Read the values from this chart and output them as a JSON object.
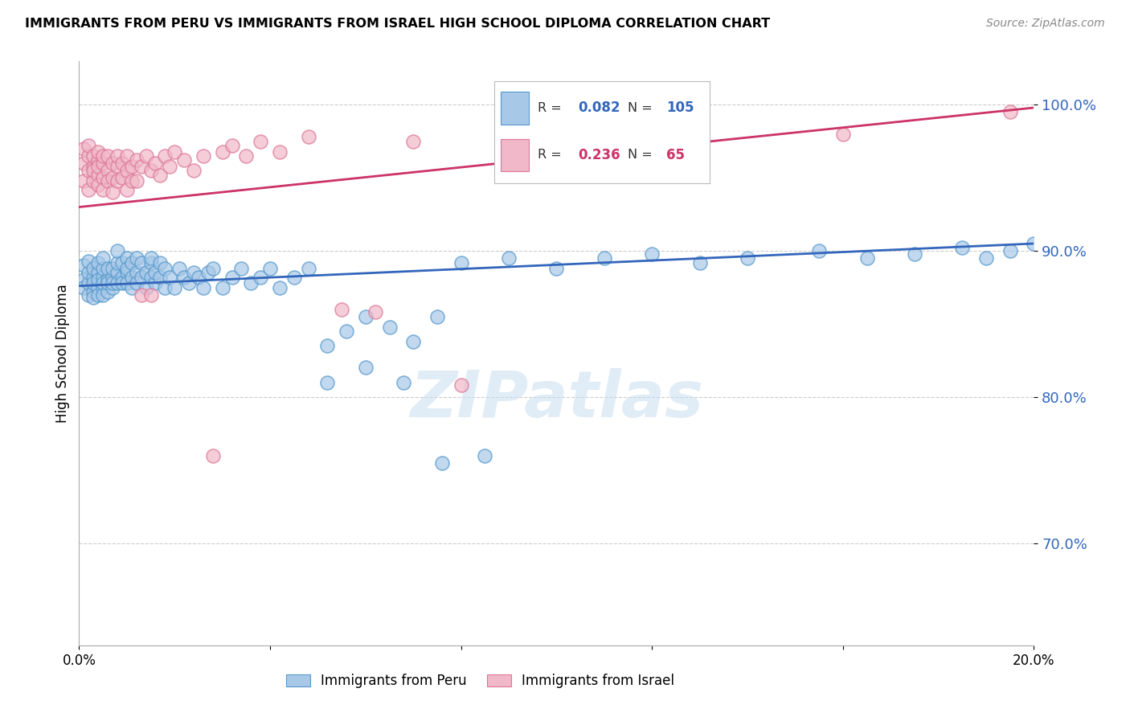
{
  "title": "IMMIGRANTS FROM PERU VS IMMIGRANTS FROM ISRAEL HIGH SCHOOL DIPLOMA CORRELATION CHART",
  "source": "Source: ZipAtlas.com",
  "ylabel": "High School Diploma",
  "ytick_labels": [
    "100.0%",
    "90.0%",
    "80.0%",
    "70.0%"
  ],
  "ytick_values": [
    1.0,
    0.9,
    0.8,
    0.7
  ],
  "xlim": [
    0.0,
    0.2
  ],
  "ylim": [
    0.63,
    1.03
  ],
  "watermark": "ZIPatlas",
  "legend_peru_R": "0.082",
  "legend_peru_N": "105",
  "legend_israel_R": "0.236",
  "legend_israel_N": "65",
  "peru_color": "#a8c8e8",
  "peru_edge_color": "#5599cc",
  "peru_line_color": "#3366bb",
  "israel_color": "#f0b8c8",
  "israel_edge_color": "#dd7799",
  "israel_line_color": "#cc3366",
  "peru_x": [
    0.001,
    0.001,
    0.001,
    0.002,
    0.002,
    0.002,
    0.002,
    0.003,
    0.003,
    0.003,
    0.003,
    0.003,
    0.004,
    0.004,
    0.004,
    0.004,
    0.004,
    0.005,
    0.005,
    0.005,
    0.005,
    0.005,
    0.005,
    0.006,
    0.006,
    0.006,
    0.006,
    0.007,
    0.007,
    0.007,
    0.007,
    0.008,
    0.008,
    0.008,
    0.008,
    0.009,
    0.009,
    0.009,
    0.01,
    0.01,
    0.01,
    0.01,
    0.011,
    0.011,
    0.011,
    0.012,
    0.012,
    0.012,
    0.013,
    0.013,
    0.014,
    0.014,
    0.015,
    0.015,
    0.015,
    0.016,
    0.016,
    0.017,
    0.017,
    0.018,
    0.018,
    0.019,
    0.02,
    0.021,
    0.022,
    0.023,
    0.024,
    0.025,
    0.026,
    0.027,
    0.028,
    0.03,
    0.032,
    0.034,
    0.036,
    0.038,
    0.04,
    0.042,
    0.045,
    0.048,
    0.052,
    0.056,
    0.06,
    0.065,
    0.07,
    0.075,
    0.08,
    0.09,
    0.1,
    0.11,
    0.12,
    0.13,
    0.14,
    0.155,
    0.165,
    0.175,
    0.185,
    0.19,
    0.195,
    0.2,
    0.052,
    0.06,
    0.068,
    0.076,
    0.085
  ],
  "peru_y": [
    0.88,
    0.89,
    0.875,
    0.878,
    0.885,
    0.87,
    0.893,
    0.872,
    0.882,
    0.868,
    0.888,
    0.878,
    0.875,
    0.885,
    0.87,
    0.88,
    0.892,
    0.875,
    0.882,
    0.87,
    0.878,
    0.888,
    0.895,
    0.88,
    0.872,
    0.888,
    0.878,
    0.882,
    0.875,
    0.888,
    0.878,
    0.885,
    0.892,
    0.878,
    0.9,
    0.882,
    0.878,
    0.892,
    0.885,
    0.895,
    0.878,
    0.888,
    0.882,
    0.892,
    0.875,
    0.895,
    0.885,
    0.878,
    0.892,
    0.882,
    0.875,
    0.885,
    0.892,
    0.882,
    0.895,
    0.878,
    0.885,
    0.882,
    0.892,
    0.875,
    0.888,
    0.882,
    0.875,
    0.888,
    0.882,
    0.878,
    0.885,
    0.882,
    0.875,
    0.885,
    0.888,
    0.875,
    0.882,
    0.888,
    0.878,
    0.882,
    0.888,
    0.875,
    0.882,
    0.888,
    0.835,
    0.845,
    0.855,
    0.848,
    0.838,
    0.855,
    0.892,
    0.895,
    0.888,
    0.895,
    0.898,
    0.892,
    0.895,
    0.9,
    0.895,
    0.898,
    0.902,
    0.895,
    0.9,
    0.905,
    0.81,
    0.82,
    0.81,
    0.755,
    0.76
  ],
  "israel_x": [
    0.001,
    0.001,
    0.001,
    0.002,
    0.002,
    0.002,
    0.002,
    0.003,
    0.003,
    0.003,
    0.003,
    0.004,
    0.004,
    0.004,
    0.004,
    0.004,
    0.005,
    0.005,
    0.005,
    0.005,
    0.006,
    0.006,
    0.006,
    0.007,
    0.007,
    0.007,
    0.008,
    0.008,
    0.008,
    0.009,
    0.009,
    0.01,
    0.01,
    0.01,
    0.011,
    0.011,
    0.012,
    0.012,
    0.013,
    0.013,
    0.014,
    0.015,
    0.015,
    0.016,
    0.017,
    0.018,
    0.019,
    0.02,
    0.022,
    0.024,
    0.026,
    0.028,
    0.03,
    0.032,
    0.035,
    0.038,
    0.042,
    0.048,
    0.055,
    0.062,
    0.07,
    0.08,
    0.095,
    0.16,
    0.195
  ],
  "israel_y": [
    0.96,
    0.948,
    0.97,
    0.955,
    0.965,
    0.942,
    0.972,
    0.958,
    0.948,
    0.965,
    0.955,
    0.962,
    0.952,
    0.968,
    0.945,
    0.958,
    0.96,
    0.95,
    0.965,
    0.942,
    0.955,
    0.948,
    0.965,
    0.96,
    0.95,
    0.94,
    0.958,
    0.965,
    0.948,
    0.96,
    0.95,
    0.955,
    0.965,
    0.942,
    0.958,
    0.948,
    0.962,
    0.948,
    0.958,
    0.87,
    0.965,
    0.955,
    0.87,
    0.96,
    0.952,
    0.965,
    0.958,
    0.968,
    0.962,
    0.955,
    0.965,
    0.76,
    0.968,
    0.972,
    0.965,
    0.975,
    0.968,
    0.978,
    0.86,
    0.858,
    0.975,
    0.808,
    0.968,
    0.98,
    0.995
  ],
  "peru_line": [
    0.0,
    0.2,
    0.876,
    0.905
  ],
  "israel_line": [
    0.0,
    0.2,
    0.93,
    0.998
  ]
}
